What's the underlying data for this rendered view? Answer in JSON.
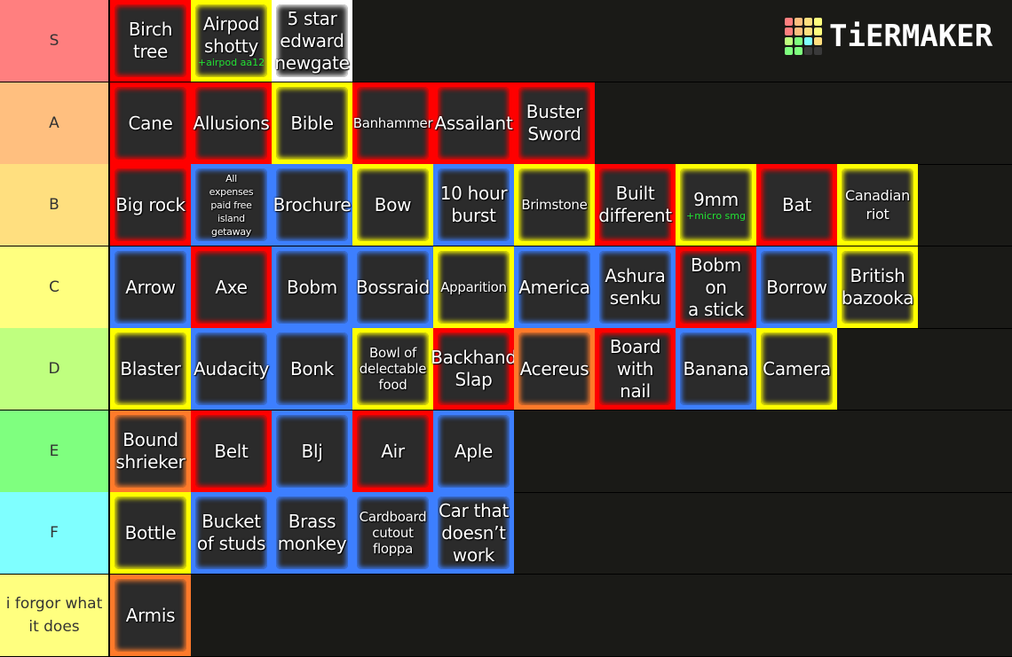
{
  "logo": {
    "text": "TiERMAKER",
    "grid_colors": [
      "#ff7f7f",
      "#ffbf7f",
      "#ffdf7f",
      "#ffff7f",
      "#ff7f7f",
      "#ffbf7f",
      "#ffdf7f",
      "#ffff7f",
      "#bfff7f",
      "#7fff7f",
      "#7fffff",
      "#ffdf7f",
      "#7fff7f",
      "#7fff7f",
      "#3a3a3a",
      "#3a3a3a"
    ]
  },
  "tiers": [
    {
      "label": "S",
      "color": "#ff7f7f",
      "items": [
        {
          "text": "Birch tree",
          "border": "#ff0000"
        },
        {
          "text": "Airpod\nshotty",
          "sub": "+airpod aa12",
          "border": "#ffff00"
        },
        {
          "text": "5 star\nedward\nnewgate",
          "border": "#ffffff"
        }
      ]
    },
    {
      "label": "A",
      "color": "#ffbf7f",
      "items": [
        {
          "text": "Cane",
          "border": "#ff0000"
        },
        {
          "text": "Allusions",
          "border": "#ff0000"
        },
        {
          "text": "Bible",
          "border": "#ffff00"
        },
        {
          "text": "Banhammer",
          "border": "#ff0000",
          "size": "xs"
        },
        {
          "text": "Assailant",
          "border": "#ff0000"
        },
        {
          "text": "Buster\nSword",
          "border": "#ff0000"
        }
      ]
    },
    {
      "label": "B",
      "color": "#ffdf7f",
      "items": [
        {
          "text": "Big rock",
          "border": "#ff0000"
        },
        {
          "text": "All\nexpenses\npaid free\nisland\ngetaway",
          "border": "#3d7fff",
          "size": "xxs"
        },
        {
          "text": "Brochure",
          "border": "#3d7fff"
        },
        {
          "text": "Bow",
          "border": "#ffff00"
        },
        {
          "text": "10 hour\nburst",
          "border": "#3d7fff"
        },
        {
          "text": "Brimstone",
          "border": "#ffff00",
          "size": "xs"
        },
        {
          "text": "Built\ndifferent",
          "border": "#ff0000"
        },
        {
          "text": "9mm",
          "sub": "+micro smg",
          "border": "#ffff00"
        },
        {
          "text": "Bat",
          "border": "#ff0000"
        },
        {
          "text": "Canadian\nriot",
          "border": "#ffff00",
          "size": "sm"
        }
      ]
    },
    {
      "label": "C",
      "color": "#ffff7f",
      "items": [
        {
          "text": "Arrow",
          "border": "#3d7fff"
        },
        {
          "text": "Axe",
          "border": "#ff0000"
        },
        {
          "text": "Bobm",
          "border": "#3d7fff"
        },
        {
          "text": "Bossraid",
          "border": "#3d7fff"
        },
        {
          "text": "Apparition",
          "border": "#ffff00",
          "size": "xs"
        },
        {
          "text": "America",
          "border": "#3d7fff"
        },
        {
          "text": "Ashura\nsenku",
          "border": "#3d7fff"
        },
        {
          "text": "Bobm on\na stick",
          "border": "#ff0000"
        },
        {
          "text": "Borrow",
          "border": "#3d7fff"
        },
        {
          "text": "British\nbazooka",
          "border": "#ffff00"
        }
      ]
    },
    {
      "label": "D",
      "color": "#bfff7f",
      "items": [
        {
          "text": "Blaster",
          "border": "#ffff00"
        },
        {
          "text": "Audacity",
          "border": "#3d7fff"
        },
        {
          "text": "Bonk",
          "border": "#3d7fff"
        },
        {
          "text": "Bowl of\ndelectable\nfood",
          "border": "#ffff00",
          "size": "xs"
        },
        {
          "text": "Backhand\nSlap",
          "border": "#ff0000"
        },
        {
          "text": "Acereus",
          "border": "#ff7a2a"
        },
        {
          "text": "Board\nwith nail",
          "border": "#ff0000"
        },
        {
          "text": "Banana",
          "border": "#3d7fff"
        },
        {
          "text": "Camera",
          "border": "#ffff00"
        }
      ]
    },
    {
      "label": "E",
      "color": "#7fff7f",
      "items": [
        {
          "text": "Bound\nshrieker",
          "border": "#ff7a2a"
        },
        {
          "text": "Belt",
          "border": "#ff0000"
        },
        {
          "text": "Blj",
          "border": "#3d7fff"
        },
        {
          "text": "Air",
          "border": "#ff0000"
        },
        {
          "text": "Aple",
          "border": "#3d7fff"
        }
      ]
    },
    {
      "label": "F",
      "color": "#7fffff",
      "items": [
        {
          "text": "Bottle",
          "border": "#ffff00"
        },
        {
          "text": "Bucket\nof studs",
          "border": "#3d7fff"
        },
        {
          "text": "Brass\nmonkey",
          "border": "#3d7fff"
        },
        {
          "text": "Cardboard\ncutout\nfloppa",
          "border": "#3d7fff",
          "size": "xs"
        },
        {
          "text": "Car that\ndoesn’t\nwork",
          "border": "#3d7fff"
        }
      ]
    },
    {
      "label": "i forgor what\nit does",
      "color": "#ffff7f",
      "items": [
        {
          "text": "Armis",
          "border": "#ff7a2a"
        }
      ]
    }
  ]
}
